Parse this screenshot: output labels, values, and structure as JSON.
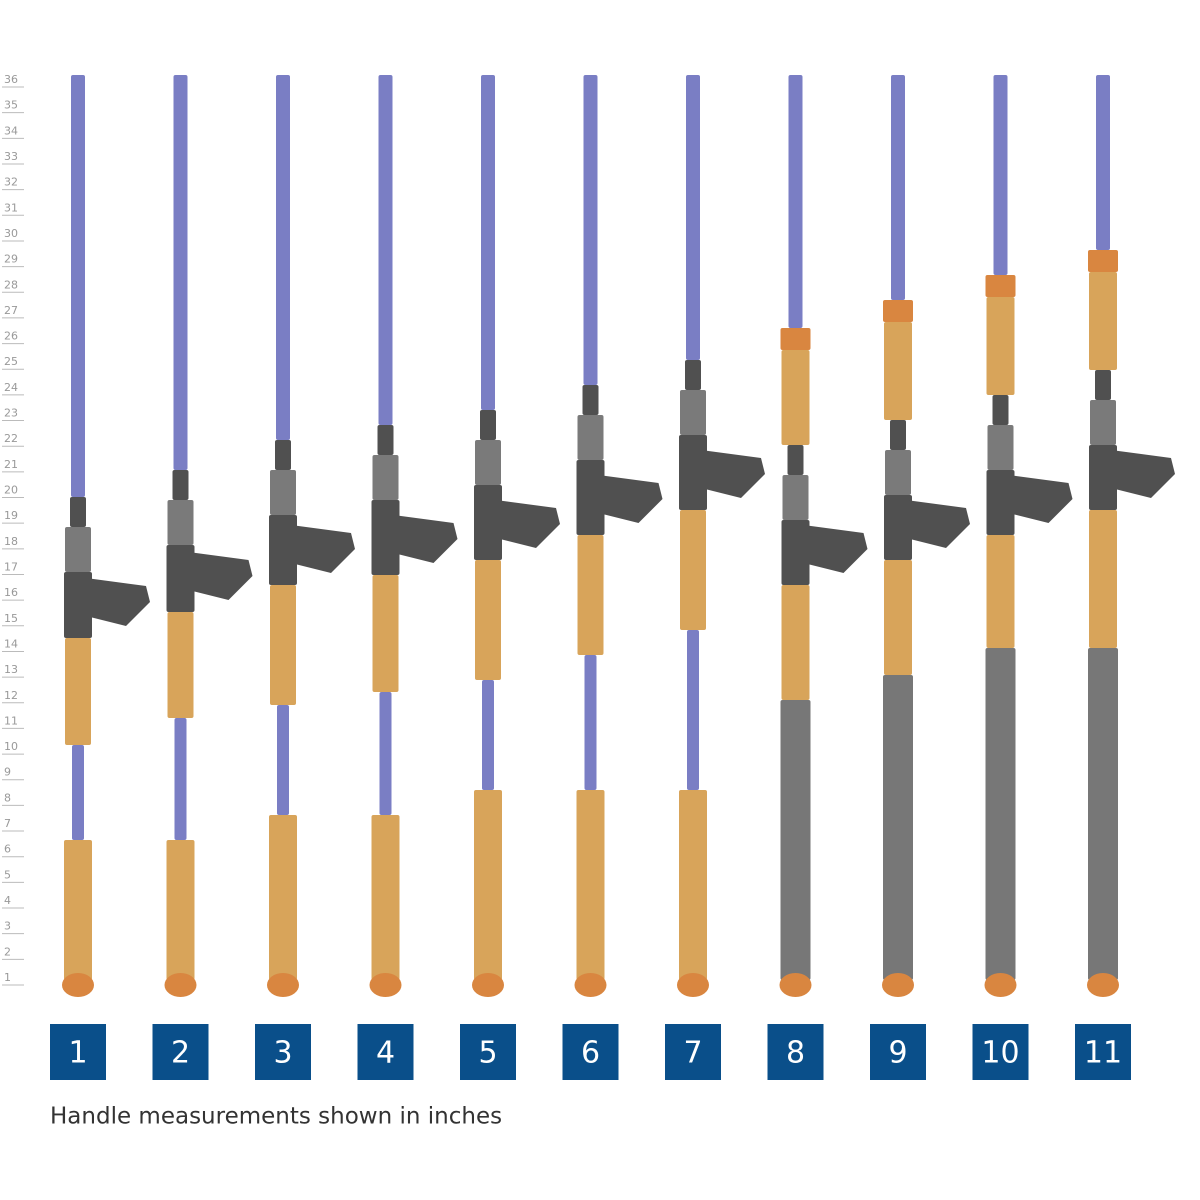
{
  "ruler_labels": [
    1,
    2,
    3,
    4,
    5,
    6,
    7,
    8,
    9,
    10,
    11,
    12,
    13,
    14,
    15,
    16,
    17,
    18,
    19,
    20,
    21,
    22,
    23,
    24,
    25,
    26,
    27,
    28,
    29,
    30,
    31,
    32,
    33,
    34,
    35,
    36
  ],
  "handle_numbers": [
    1,
    2,
    3,
    4,
    5,
    6,
    7,
    8,
    9,
    10,
    11
  ],
  "caption": "Handle measurements shown in inches"
}
